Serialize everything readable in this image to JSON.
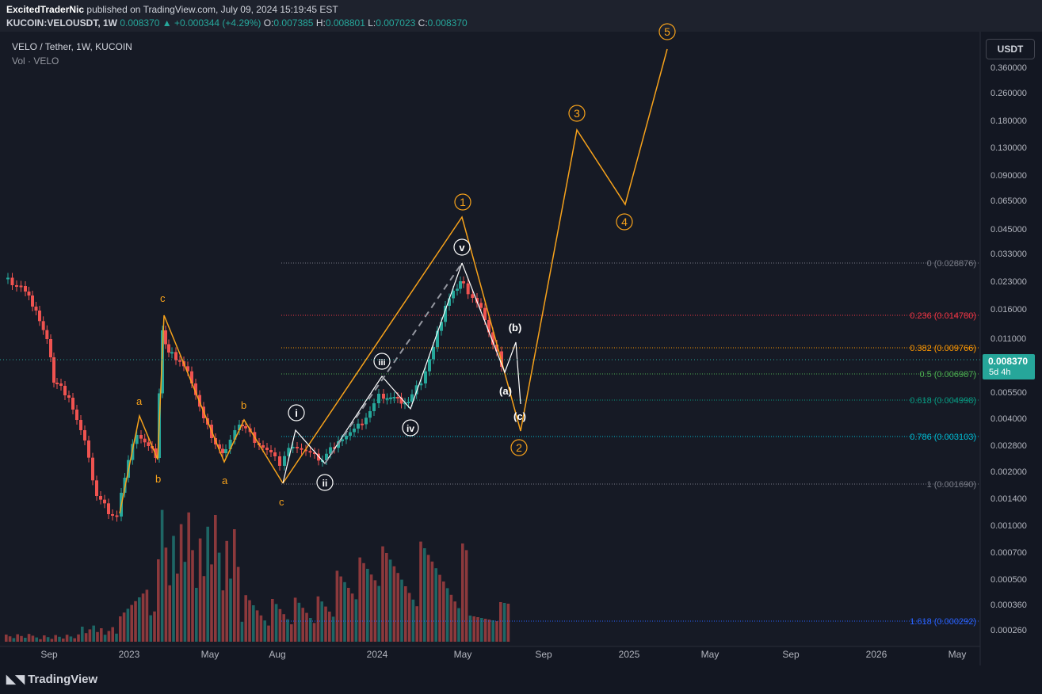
{
  "header": {
    "author": "ExcitedTraderNic",
    "published": "published on TradingView.com, July 09, 2024 15:19:45 EST",
    "symbol": "KUCOIN:VELOUSDT, 1W",
    "last": "0.008370",
    "change": "▲ +0.000344 (+4.29%)",
    "o_label": "O:",
    "o": "0.007385",
    "h_label": "H:",
    "h": "0.008801",
    "l_label": "L:",
    "l": "0.007023",
    "c_label": "C:",
    "c": "0.008370"
  },
  "legend": {
    "title": "VELO / Tether, 1W, KUCOIN",
    "volume": "Vol · VELO"
  },
  "currency_button": "USDT",
  "price_tag": {
    "price": "0.008370",
    "countdown": "5d 4h"
  },
  "price_axis": [
    "0.360000",
    "0.260000",
    "0.180000",
    "0.130000",
    "0.090000",
    "0.065000",
    "0.045000",
    "0.033000",
    "0.023000",
    "0.016000",
    "0.011000",
    "0.005500",
    "0.004000",
    "0.002800",
    "0.002000",
    "0.001400",
    "0.001000",
    "0.000700",
    "0.000500",
    "0.000360",
    "0.000260"
  ],
  "time_axis": [
    "Sep",
    "2023",
    "May",
    "Aug",
    "2024",
    "May",
    "Sep",
    "2025",
    "May",
    "Sep",
    "2026",
    "May"
  ],
  "fib_levels": [
    {
      "label": "0 (0.028876)",
      "color": "#787b86"
    },
    {
      "label": "0.236 (0.014780)",
      "color": "#f23645"
    },
    {
      "label": "0.382 (0.009766)",
      "color": "#ff9800"
    },
    {
      "label": "0.5 (0.006987)",
      "color": "#4caf50"
    },
    {
      "label": "0.618 (0.004998)",
      "color": "#089981"
    },
    {
      "label": "0.786 (0.003103)",
      "color": "#00bcd4"
    },
    {
      "label": "1 (0.001690)",
      "color": "#787b86"
    },
    {
      "label": "1.618 (0.000292)",
      "color": "#2962ff"
    }
  ],
  "wave_labels": {
    "orange_minor": [
      "a",
      "b",
      "c",
      "a",
      "b",
      "c"
    ],
    "white_circled": [
      "i",
      "ii",
      "iii",
      "iv",
      "v"
    ],
    "white_corrective": [
      "(a)",
      "(b)",
      "(c)"
    ],
    "orange_circled": [
      "1",
      "2",
      "3",
      "4",
      "5"
    ]
  },
  "colors": {
    "up": "#26a69a",
    "down": "#ef5350",
    "orange": "#f7a21b",
    "white": "#ffffff"
  },
  "footer": {
    "brand": "TradingView"
  }
}
